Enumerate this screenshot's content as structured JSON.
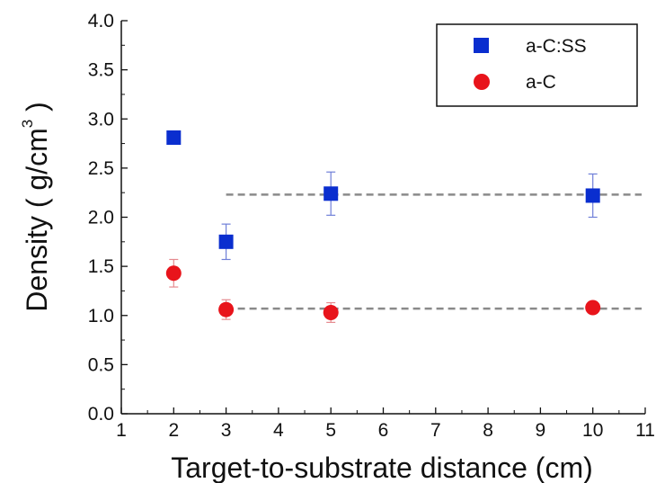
{
  "chart_data": {
    "type": "scatter",
    "title": "",
    "xlabel": "Target-to-substrate distance (cm)",
    "ylabel": "Density ( g/cm",
    "ylabel_superscript": "3",
    "ylabel_suffix": " )",
    "xlim": [
      1,
      11
    ],
    "ylim": [
      0.0,
      4.0
    ],
    "x_ticks": [
      "1",
      "2",
      "3",
      "4",
      "5",
      "6",
      "7",
      "8",
      "9",
      "10",
      "11"
    ],
    "y_ticks": [
      "0.0",
      "0.5",
      "1.0",
      "1.5",
      "2.0",
      "2.5",
      "3.0",
      "3.5",
      "4.0"
    ],
    "grid": false,
    "legend_position": "top-right",
    "series": [
      {
        "name": "a-C:SS",
        "marker": "square",
        "color": "#0a2ecf",
        "points": [
          {
            "x": 2,
            "y": 2.81,
            "err": 0
          },
          {
            "x": 3,
            "y": 1.75,
            "err": 0.18
          },
          {
            "x": 5,
            "y": 2.24,
            "err": 0.22
          },
          {
            "x": 10,
            "y": 2.22,
            "err": 0.22
          }
        ],
        "reference_line": {
          "y": 2.23,
          "x_from": 3,
          "x_to": 11
        }
      },
      {
        "name": "a-C",
        "marker": "circle",
        "color": "#e8141b",
        "points": [
          {
            "x": 2,
            "y": 1.43,
            "err": 0.14
          },
          {
            "x": 3,
            "y": 1.06,
            "err": 0.1
          },
          {
            "x": 5,
            "y": 1.03,
            "err": 0.1
          },
          {
            "x": 10,
            "y": 1.08,
            "err": 0.06
          }
        ],
        "reference_line": {
          "y": 1.07,
          "x_from": 3,
          "x_to": 11
        }
      }
    ],
    "reference_line_color": "#8a8a8a"
  }
}
